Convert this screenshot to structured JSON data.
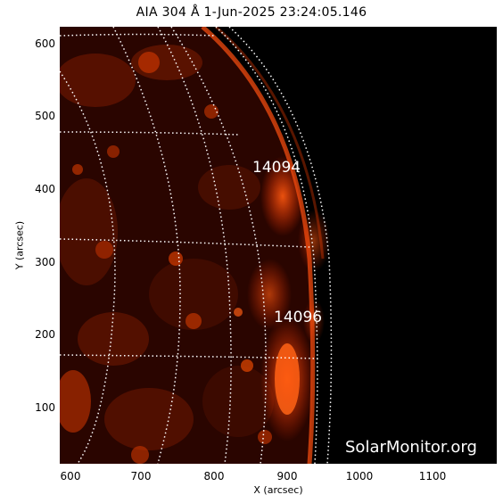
{
  "title": "AIA 304 Å  1-Jun-2025 23:24:05.146",
  "axes": {
    "xlabel": "X (arcsec)",
    "ylabel": "Y (arcsec)",
    "xticks": [
      "600",
      "700",
      "800",
      "900",
      "1000",
      "1100"
    ],
    "yticks": [
      "600",
      "500",
      "400",
      "300",
      "200",
      "100"
    ],
    "xrange": [
      585,
      1185
    ],
    "yrange": [
      25,
      625
    ]
  },
  "regions": [
    {
      "id": "14094",
      "label": "14094"
    },
    {
      "id": "14096",
      "label": "14096"
    }
  ],
  "watermark": "SolarMonitor.org",
  "colors": {
    "background": "#000000",
    "plasma": "#ff3a00",
    "grid": "#ffffff"
  }
}
